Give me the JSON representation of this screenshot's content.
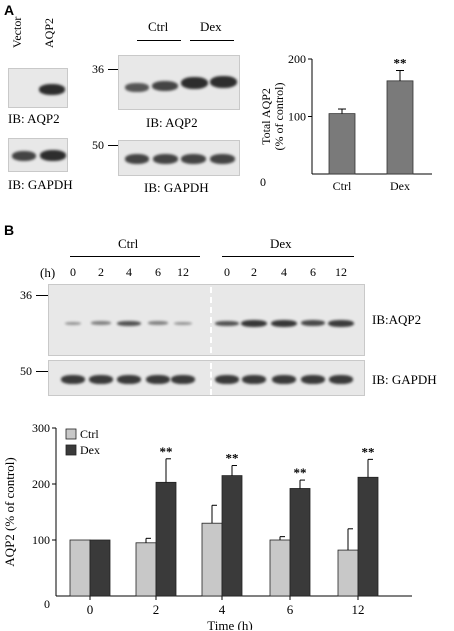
{
  "panelA": {
    "letter": "A",
    "lanes": {
      "vector": "Vector",
      "aqp2": "AQP2"
    },
    "ib_aqp2": "IB: AQP2",
    "ib_gapdh": "IB: GAPDH",
    "groups": {
      "ctrl": "Ctrl",
      "dex": "Dex"
    },
    "marker36": "36",
    "marker50": "50"
  },
  "panelB": {
    "letter": "B",
    "groups": {
      "ctrl": "Ctrl",
      "dex": "Dex"
    },
    "hours_label": "(h)",
    "lane_hours": [
      "0",
      "2",
      "4",
      "6",
      "12",
      "0",
      "2",
      "4",
      "6",
      "12"
    ],
    "marker36": "36",
    "marker50": "50",
    "ib_aqp2": "IB:AQP2",
    "ib_gapdh": "IB: GAPDH"
  },
  "chart_data": [
    {
      "type": "bar",
      "categories": [
        "Ctrl",
        "Dex"
      ],
      "values": [
        105,
        162
      ],
      "errors": [
        8,
        18
      ],
      "significance": [
        "",
        "**"
      ],
      "ylabel_line1": "Total AQP2",
      "ylabel_line2": "(% of control)",
      "yticks": [
        100,
        200
      ],
      "origin_label": "0",
      "ylim": [
        0,
        200
      ],
      "colors": {
        "bar": "#7a7a7a"
      }
    },
    {
      "type": "bar",
      "categories": [
        "0",
        "2",
        "4",
        "6",
        "12"
      ],
      "series": [
        {
          "name": "Ctrl",
          "values": [
            100,
            95,
            130,
            100,
            82
          ],
          "errors": [
            0,
            8,
            32,
            6,
            38
          ],
          "color": "#c8c8c8"
        },
        {
          "name": "Dex",
          "values": [
            100,
            203,
            215,
            192,
            212
          ],
          "errors": [
            0,
            42,
            18,
            15,
            32
          ],
          "color": "#3a3a3a"
        }
      ],
      "significance": [
        "",
        "**",
        "**",
        "**",
        "**"
      ],
      "xlabel": "Time (h)",
      "ylabel": "AQP2 (% of control)",
      "yticks": [
        100,
        200,
        300
      ],
      "origin_label": "0",
      "ylim": [
        0,
        300
      ],
      "legend_position": "top-left"
    }
  ]
}
